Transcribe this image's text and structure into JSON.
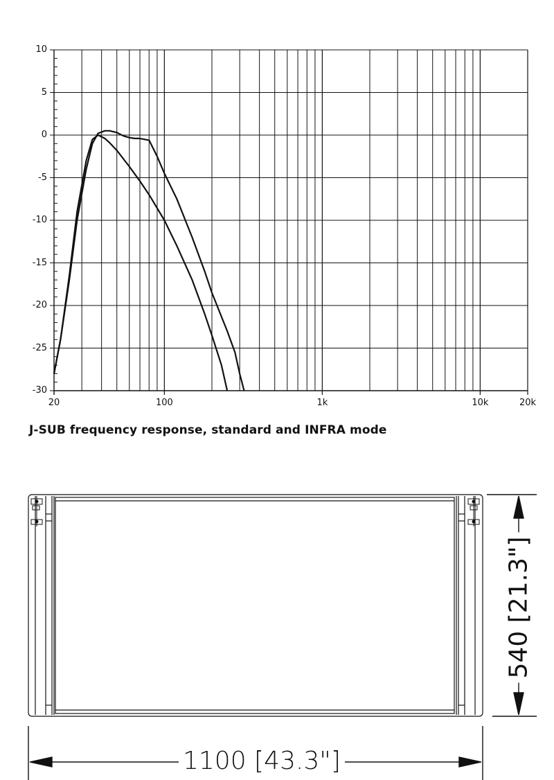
{
  "chart_data": {
    "type": "line",
    "caption": "J-SUB frequency response, standard and INFRA mode",
    "xscale": "log",
    "xlim": [
      20,
      20000
    ],
    "ylim": [
      -30,
      10
    ],
    "grid": true,
    "y_ticks": [
      "10",
      "5",
      "0",
      "-5",
      "-10",
      "-15",
      "-20",
      "-25",
      "-30"
    ],
    "x_ticks": [
      {
        "value": 20,
        "label": "20"
      },
      {
        "value": 100,
        "label": "100"
      },
      {
        "value": 1000,
        "label": "1k"
      },
      {
        "value": 10000,
        "label": "10k"
      },
      {
        "value": 20000,
        "label": "20k"
      }
    ],
    "series": [
      {
        "x": [
          20,
          22,
          25,
          28,
          32,
          35,
          38,
          42,
          45,
          50,
          55,
          60,
          65,
          70,
          80,
          90,
          100,
          120,
          150,
          180,
          200,
          250,
          280,
          300,
          320
        ],
        "y": [
          -28,
          -24,
          -17,
          -10,
          -4,
          -1,
          0.2,
          0.5,
          0.5,
          0.3,
          -0.1,
          -0.3,
          -0.4,
          -0.4,
          -0.6,
          -2.5,
          -4.5,
          -7.5,
          -12,
          -16,
          -18.5,
          -23,
          -25.5,
          -28,
          -30
        ]
      },
      {
        "x": [
          20,
          22,
          25,
          28,
          32,
          35,
          38,
          42,
          45,
          50,
          60,
          70,
          80,
          100,
          120,
          150,
          180,
          200,
          230,
          250
        ],
        "y": [
          -28,
          -24,
          -16.5,
          -9,
          -3,
          -0.5,
          0,
          -0.4,
          -0.9,
          -1.8,
          -3.7,
          -5.4,
          -7,
          -10,
          -13,
          -17,
          -21,
          -23.5,
          -27,
          -30
        ]
      }
    ]
  },
  "drawing": {
    "width_label": "1100 [43.3\"]",
    "height_label": "540 [21.3\"]"
  }
}
